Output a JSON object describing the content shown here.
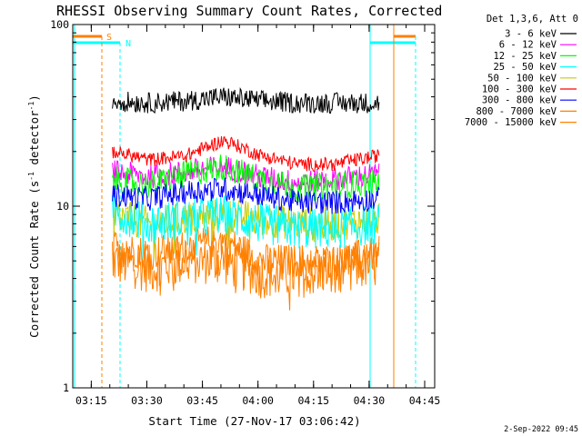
{
  "chart_data": {
    "type": "line",
    "title": "RHESSI Observing Summary Count Rates, Corrected",
    "xlabel": "Start Time (27-Nov-17 03:06:42)",
    "ylabel_main": "Corrected Count Rate (s",
    "ylabel_sup1": "-1",
    "ylabel_mid": " detector",
    "ylabel_sup2": "-1",
    "ylabel_end": ")",
    "yscale": "log",
    "ylim": [
      1,
      100
    ],
    "xlim_minutes": [
      3.3,
      101.0
    ],
    "x_ticks": [
      "03:15",
      "03:30",
      "03:45",
      "04:00",
      "04:15",
      "04:30",
      "04:45"
    ],
    "y_ticks": [
      "1",
      "10",
      "100"
    ],
    "timestamp": "2-Sep-2022 09:45",
    "legend_header": "Det 1,3,6, Att 0",
    "legend_position": "right",
    "flags": {
      "saa_label": "S",
      "night_label": "N",
      "saa_color": "#ff8000",
      "night_color": "#00ffff"
    },
    "data_window_minutes": [
      14.0,
      86.0
    ],
    "series": [
      {
        "name": "3 - 6 keV",
        "color": "#000000",
        "x": [
          14,
          24,
          34,
          44,
          54,
          64,
          74,
          86
        ],
        "values": [
          38,
          37,
          38,
          40,
          38,
          37,
          37,
          37
        ],
        "noise": 0.06
      },
      {
        "name": "6 - 12 keV",
        "color": "#ff00ff",
        "x": [
          14,
          24,
          34,
          44,
          54,
          64,
          74,
          86
        ],
        "values": [
          15.5,
          14.5,
          15.5,
          16.5,
          14.5,
          13.5,
          14,
          15
        ],
        "noise": 0.07
      },
      {
        "name": "12 - 25 keV",
        "color": "#00ff00",
        "x": [
          14,
          24,
          34,
          44,
          54,
          64,
          74,
          86
        ],
        "values": [
          14,
          13,
          15,
          16.5,
          14,
          12.5,
          13,
          13.5
        ],
        "noise": 0.08
      },
      {
        "name": "25 - 50 keV",
        "color": "#00ffff",
        "x": [
          14,
          24,
          34,
          44,
          54,
          64,
          74,
          86
        ],
        "values": [
          9.5,
          8,
          8.5,
          9,
          8,
          7.5,
          7.5,
          8
        ],
        "noise": 0.12
      },
      {
        "name": "50 - 100 keV",
        "color": "#cccc00",
        "x": [
          14,
          24,
          34,
          44,
          54,
          64,
          74,
          86
        ],
        "values": [
          9,
          8,
          8.5,
          9,
          8.5,
          8,
          8,
          8.5
        ],
        "noise": 0.1
      },
      {
        "name": "100 - 300 keV",
        "color": "#ff0000",
        "x": [
          14,
          24,
          34,
          44,
          54,
          64,
          74,
          86
        ],
        "values": [
          20,
          18,
          19,
          23,
          19,
          17,
          17,
          19
        ],
        "noise": 0.04
      },
      {
        "name": "300 - 800 keV",
        "color": "#0000ff",
        "x": [
          14,
          24,
          34,
          44,
          54,
          64,
          74,
          86
        ],
        "values": [
          11.5,
          11,
          12,
          12.5,
          11.5,
          10.5,
          10.5,
          11
        ],
        "noise": 0.07
      },
      {
        "name": "800 - 7000 keV",
        "color": "#ff8000",
        "x": [
          14,
          24,
          34,
          44,
          54,
          64,
          74,
          86
        ],
        "values": [
          6,
          5.5,
          6,
          6.5,
          5,
          5,
          5,
          5.5
        ],
        "noise": 0.1
      },
      {
        "name": "7000 - 15000 keV",
        "color": "#ff8000",
        "x": [
          14,
          24,
          34,
          44,
          54,
          64,
          74,
          86
        ],
        "values": [
          5,
          4.5,
          5,
          5,
          4.2,
          4.2,
          4.5,
          4.8
        ],
        "noise": 0.14
      }
    ]
  }
}
